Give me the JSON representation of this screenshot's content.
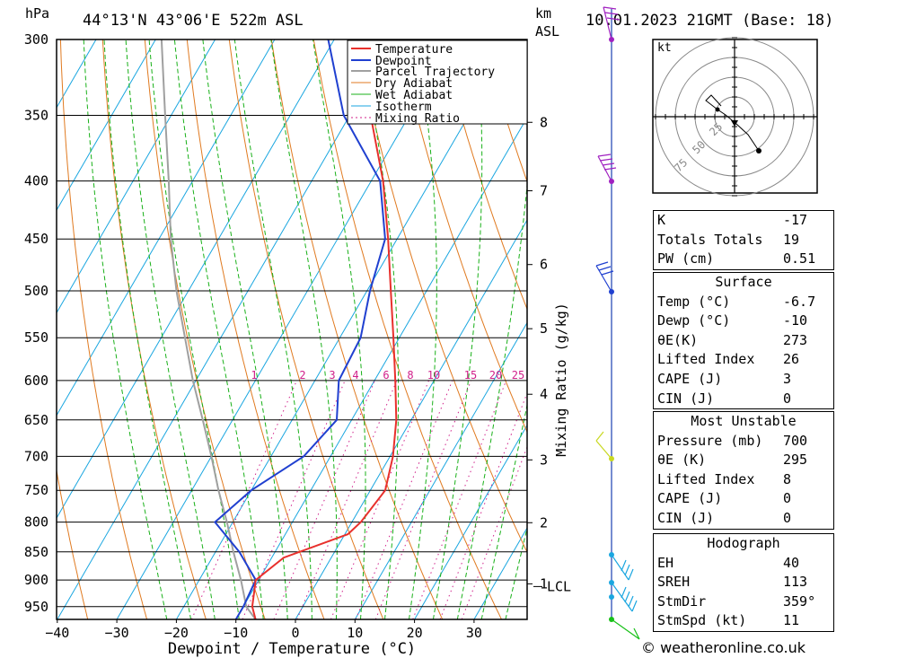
{
  "header": {
    "location": "44°13'N  43°06'E  522m  ASL",
    "datetime": "10.01.2023  21GMT  (Base: 18)",
    "hpa_label": "hPa",
    "km_label": "km",
    "asl_label": "ASL"
  },
  "chart_data": {
    "type": "skew-t",
    "xlabel": "Dewpoint / Temperature (°C)",
    "ylabel_right": "Mixing Ratio (g/kg)",
    "pressure_levels": [
      300,
      350,
      400,
      450,
      500,
      550,
      600,
      650,
      700,
      750,
      800,
      850,
      900,
      950
    ],
    "x_ticks": [
      -40,
      -30,
      -20,
      -10,
      0,
      10,
      20,
      30
    ],
    "km_ticks": [
      {
        "km": "8",
        "p": 355
      },
      {
        "km": "7",
        "p": 408
      },
      {
        "km": "6",
        "p": 474
      },
      {
        "km": "5",
        "p": 540
      },
      {
        "km": "4",
        "p": 617
      },
      {
        "km": "3",
        "p": 705
      },
      {
        "km": "2",
        "p": 801
      },
      {
        "km": "1",
        "p": 907
      }
    ],
    "lcl": {
      "label": "LCL",
      "p": 912
    },
    "mixing_ratio_labels": [
      "1",
      "2",
      "3",
      "4",
      "6",
      "8",
      "10",
      "15",
      "20",
      "25"
    ],
    "mixing_ratio_axis_label": "Mixing Ratio (g/kg)",
    "legend": [
      "Temperature",
      "Dewpoint",
      "Parcel Trajectory",
      "Dry Adiabat",
      "Wet Adiabat",
      "Isotherm",
      "Mixing Ratio"
    ],
    "temperature": [
      [
        975,
        -6.7
      ],
      [
        950,
        -8.5
      ],
      [
        900,
        -10.5
      ],
      [
        860,
        -8
      ],
      [
        820,
        0.5
      ],
      [
        800,
        1.5
      ],
      [
        750,
        2.5
      ],
      [
        700,
        0.5
      ],
      [
        650,
        -2.5
      ],
      [
        600,
        -6.5
      ],
      [
        550,
        -11
      ],
      [
        500,
        -16
      ],
      [
        450,
        -21.5
      ],
      [
        400,
        -28
      ],
      [
        350,
        -36.5
      ],
      [
        300,
        -45.5
      ]
    ],
    "dewpoint": [
      [
        975,
        -10
      ],
      [
        950,
        -10
      ],
      [
        900,
        -10.5
      ],
      [
        850,
        -16
      ],
      [
        800,
        -23
      ],
      [
        750,
        -20
      ],
      [
        700,
        -14.5
      ],
      [
        650,
        -12.5
      ],
      [
        600,
        -16
      ],
      [
        550,
        -16.5
      ],
      [
        500,
        -19.5
      ],
      [
        450,
        -22
      ],
      [
        400,
        -28.5
      ],
      [
        350,
        -41
      ],
      [
        300,
        -51
      ]
    ],
    "parcel": [
      [
        975,
        -6.7
      ],
      [
        950,
        -9.5
      ],
      [
        900,
        -13
      ],
      [
        850,
        -17
      ],
      [
        800,
        -21
      ],
      [
        750,
        -25.5
      ],
      [
        700,
        -30
      ],
      [
        650,
        -35
      ],
      [
        600,
        -40.5
      ],
      [
        550,
        -46
      ],
      [
        500,
        -52
      ],
      [
        450,
        -58
      ],
      [
        400,
        -64
      ],
      [
        350,
        -71
      ],
      [
        300,
        -79
      ]
    ]
  },
  "hodograph": {
    "unit": "kt",
    "rings": [
      "25",
      "50",
      "75"
    ]
  },
  "indices": {
    "k_label": "K",
    "k": "-17",
    "tt_label": "Totals Totals",
    "tt": "19",
    "pw_label": "PW (cm)",
    "pw": "0.51"
  },
  "surface": {
    "title": "Surface",
    "temp_label": "Temp (°C)",
    "temp": "-6.7",
    "dewp_label": "Dewp (°C)",
    "dewp": "-10",
    "theta_e_label": "θE(K)",
    "theta_e": "273",
    "li_label": "Lifted Index",
    "li": "26",
    "cape_label": "CAPE (J)",
    "cape": "3",
    "cin_label": "CIN (J)",
    "cin": "0"
  },
  "most_unstable": {
    "title": "Most Unstable",
    "pressure_label": "Pressure (mb)",
    "pressure": "700",
    "theta_e_label": "θE (K)",
    "theta_e": "295",
    "li_label": "Lifted Index",
    "li": "8",
    "cape_label": "CAPE (J)",
    "cape": "0",
    "cin_label": "CIN (J)",
    "cin": "0"
  },
  "hodo_table": {
    "title": "Hodograph",
    "eh_label": "EH",
    "eh": "40",
    "sreh_label": "SREH",
    "sreh": "113",
    "stmdir_label": "StmDir",
    "stmdir": "359°",
    "stmspd_label": "StmSpd (kt)",
    "stmspd": "11"
  },
  "credit": "© weatheronline.co.uk",
  "colors": {
    "temperature": "#e8302c",
    "dewpoint": "#2040d0",
    "parcel": "#a0a0a0",
    "dry_adiabat": "#e07a20",
    "wet_adiabat": "#18b018",
    "isotherm": "#1aa6e0",
    "mixing_ratio": "#d0208a"
  }
}
